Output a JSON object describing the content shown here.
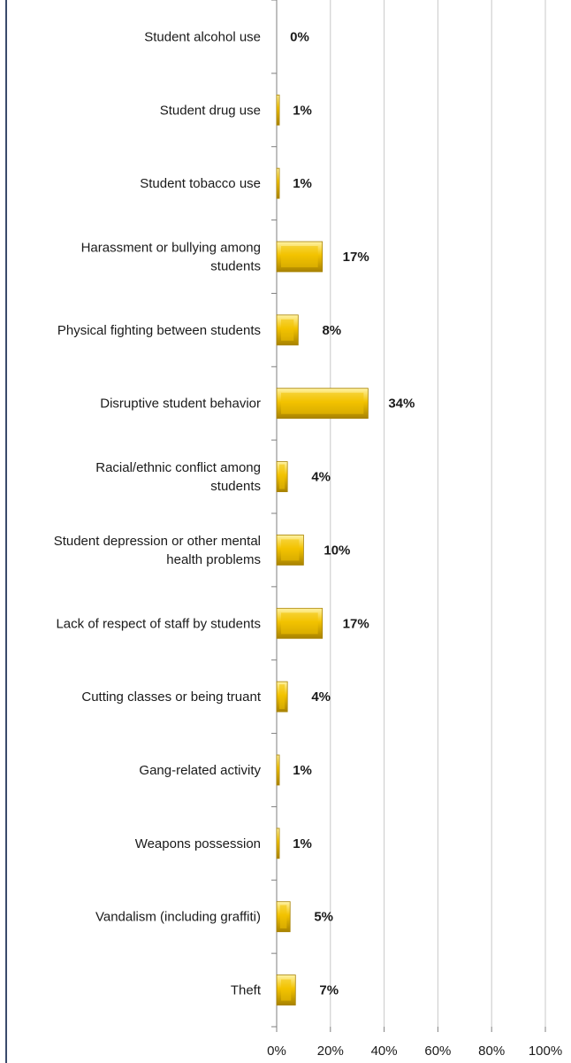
{
  "chart_data": {
    "type": "bar",
    "orientation": "horizontal",
    "categories": [
      "Student alcohol use",
      "Student drug use",
      "Student tobacco use",
      "Harassment or bullying among students",
      "Physical fighting between students",
      "Disruptive student behavior",
      "Racial/ethnic conflict among students",
      "Student depression or other mental health problems",
      "Lack of respect of staff by students",
      "Cutting classes or being truant",
      "Gang-related activity",
      "Weapons possession",
      "Vandalism (including graffiti)",
      "Theft"
    ],
    "category_lines": [
      [
        "Student alcohol use"
      ],
      [
        "Student drug use"
      ],
      [
        "Student tobacco use"
      ],
      [
        "Harassment or bullying among",
        "students"
      ],
      [
        "Physical fighting between students"
      ],
      [
        "Disruptive student behavior"
      ],
      [
        "Racial/ethnic conflict among",
        "students"
      ],
      [
        "Student depression or other mental",
        "health problems"
      ],
      [
        "Lack of respect of staff by students"
      ],
      [
        "Cutting classes or being truant"
      ],
      [
        "Gang-related activity"
      ],
      [
        "Weapons possession"
      ],
      [
        "Vandalism (including graffiti)"
      ],
      [
        "Theft"
      ]
    ],
    "values": [
      0,
      1,
      1,
      17,
      8,
      34,
      4,
      10,
      17,
      4,
      1,
      1,
      5,
      7
    ],
    "value_labels": [
      "0%",
      "1%",
      "1%",
      "17%",
      "8%",
      "34%",
      "4%",
      "10%",
      "17%",
      "4%",
      "1%",
      "1%",
      "5%",
      "7%"
    ],
    "xlim": [
      0,
      100
    ],
    "x_ticks": [
      0,
      20,
      40,
      60,
      80,
      100
    ],
    "x_tick_labels": [
      "0%",
      "20%",
      "40%",
      "60%",
      "80%",
      "100%"
    ],
    "gridlines": true,
    "legend": "none",
    "colors": {
      "bar_fill": "#f2c200",
      "bar_highlight": "#fff3a6",
      "bar_shade": "#a88200",
      "grid": "#c8c8c8",
      "axis": "#7f7f7f",
      "frame": "#3a4a6b"
    }
  }
}
